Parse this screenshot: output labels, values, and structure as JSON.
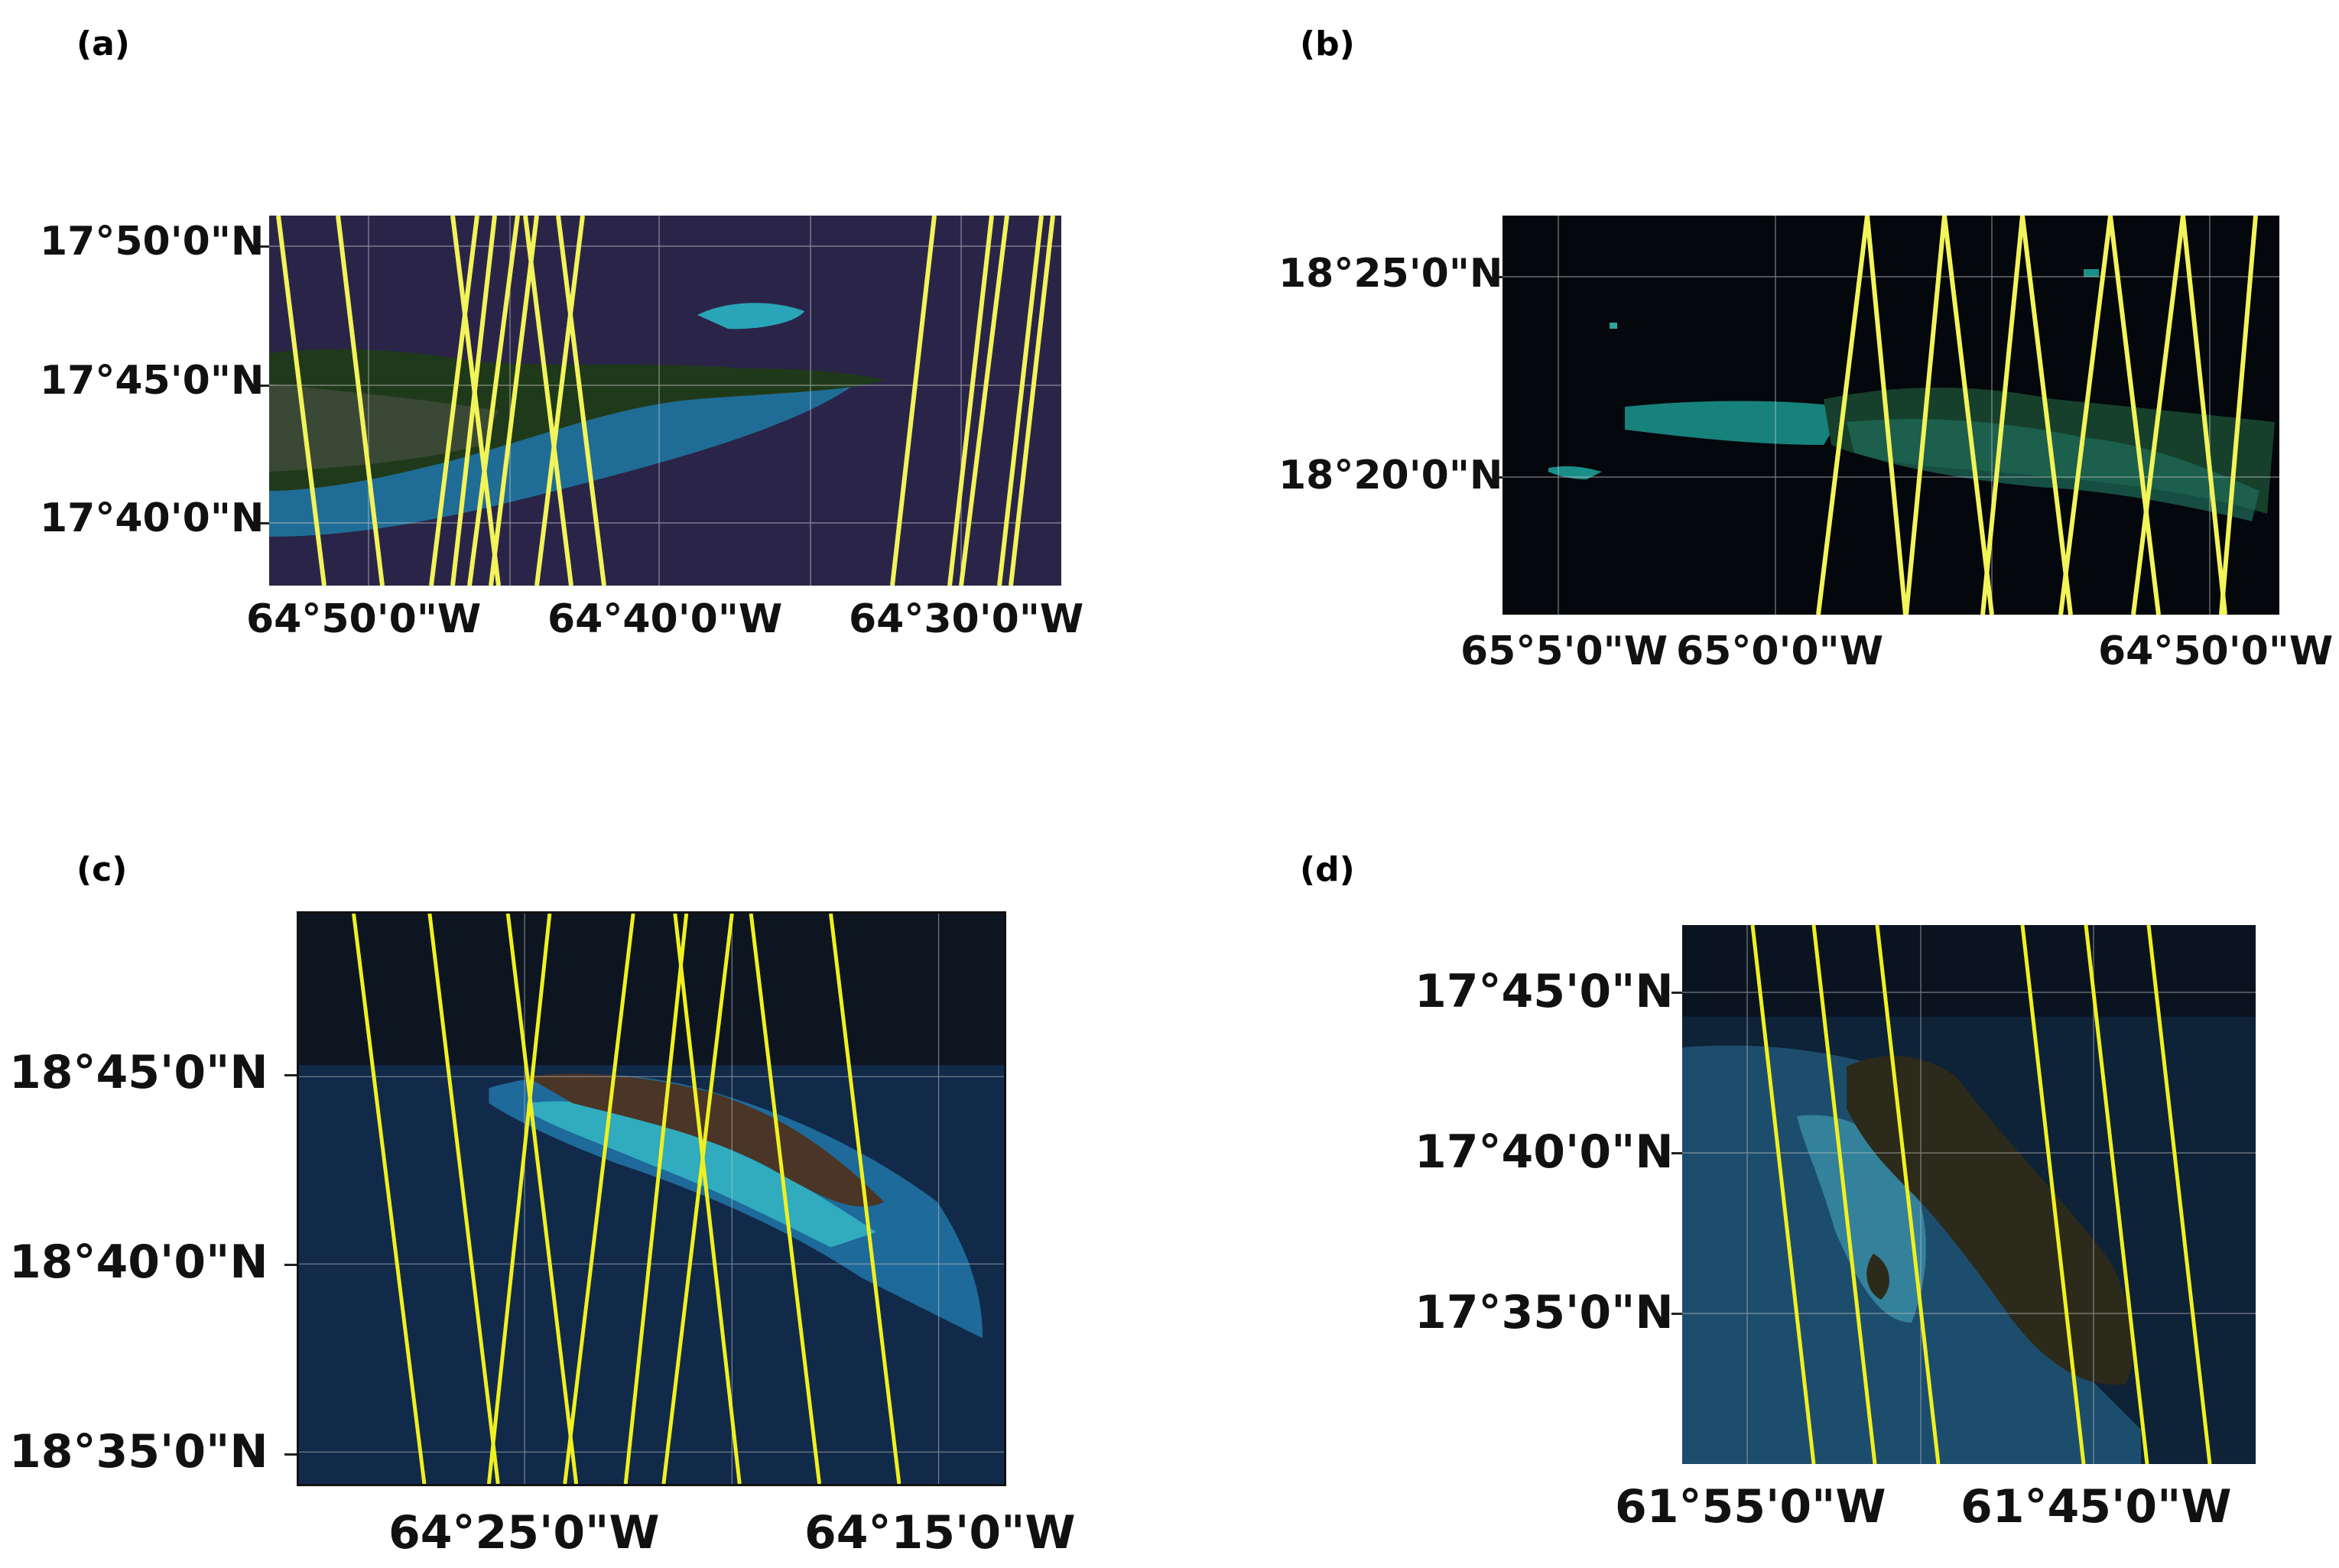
{
  "panels": [
    {
      "id": "a",
      "label": "(a)",
      "lat_labels": [
        "17°50'0\"N",
        "17°45'0\"N",
        "17°40'0\"N"
      ],
      "lon_labels": [
        "64°50'0\"W",
        "64°40'0\"W",
        "64°30'0\"W"
      ],
      "colors": {
        "sea": "#2a2548",
        "land": "#1f3a1a",
        "shallow": "#1d7aa5",
        "track": "#f3f35a"
      }
    },
    {
      "id": "b",
      "label": "(b)",
      "lat_labels": [
        "18°25'0\"N",
        "18°20'0\"N"
      ],
      "lon_labels": [
        "65°5'0\"W",
        "65°0'0\"W",
        "64°50'0\"W"
      ],
      "colors": {
        "sea": "#04070c",
        "land": "#16402c",
        "shallow": "#1a8f88",
        "track": "#f3f35a"
      }
    },
    {
      "id": "c",
      "label": "(c)",
      "lat_labels": [
        "18°45'0\"N",
        "18°40'0\"N",
        "18°35'0\"N"
      ],
      "lon_labels": [
        "64°25'0\"W",
        "64°15'0\"W"
      ],
      "colors": {
        "sea": "#122a4a",
        "land": "#4a3526",
        "shallow": "#35b6c4",
        "track": "#f0f020"
      }
    },
    {
      "id": "d",
      "label": "(d)",
      "lat_labels": [
        "17°45'0\"N",
        "17°40'0\"N",
        "17°35'0\"N"
      ],
      "lon_labels": [
        "61°55'0\"W",
        "61°45'0\"W"
      ],
      "colors": {
        "sea": "#0e2238",
        "land": "#2c2a1a",
        "shallow": "#3a8ea5",
        "track": "#f0f020"
      }
    }
  ]
}
